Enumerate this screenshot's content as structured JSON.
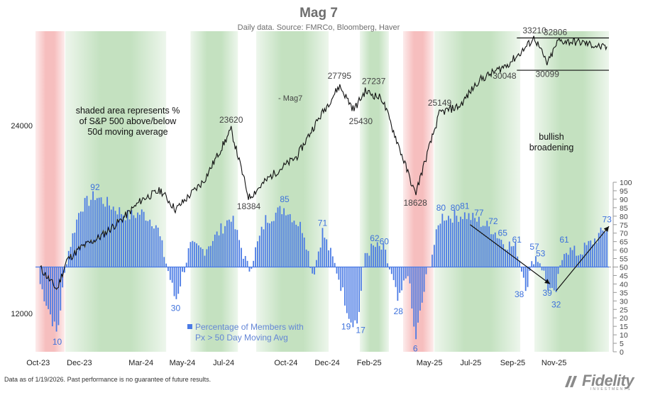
{
  "chart_data": {
    "type": "line+bar",
    "title": "Mag 7",
    "subtitle": "Daily data.  Source: FMRCo, Bloomberg, Haver",
    "x_tick_labels": [
      "Oct-23",
      "Dec-23",
      "Mar-24",
      "May-24",
      "Jul-24",
      "Oct-24",
      "Dec-24",
      "Feb-25",
      "May-25",
      "Jul-25",
      "Sep-25",
      "Nov-25"
    ],
    "left_axis": {
      "scale": "log",
      "tick_labels": [
        "12000",
        "24000"
      ]
    },
    "right_axis": {
      "range": [
        0,
        100
      ],
      "tick_labels": [
        "0",
        "5",
        "10",
        "15",
        "20",
        "25",
        "30",
        "35",
        "40",
        "45",
        "50",
        "55",
        "60",
        "65",
        "70",
        "75",
        "80",
        "85",
        "90",
        "95",
        "100"
      ]
    },
    "line_series": {
      "name": "Mag7",
      "points": [
        [
          "2023-10-02",
          14200
        ],
        [
          "2023-10-27",
          13100
        ],
        [
          "2023-11-10",
          14600
        ],
        [
          "2023-12-01",
          15300
        ],
        [
          "2023-12-29",
          15900
        ],
        [
          "2024-01-31",
          17000
        ],
        [
          "2024-03-01",
          18300
        ],
        [
          "2024-03-28",
          18900
        ],
        [
          "2024-04-19",
          17600
        ],
        [
          "2024-05-31",
          19600
        ],
        [
          "2024-07-10",
          23620
        ],
        [
          "2024-08-05",
          18384
        ],
        [
          "2024-09-06",
          19900
        ],
        [
          "2024-10-15",
          21400
        ],
        [
          "2024-11-08",
          23800
        ],
        [
          "2024-12-17",
          27795
        ],
        [
          "2025-01-07",
          25430
        ],
        [
          "2025-01-24",
          27237
        ],
        [
          "2025-02-18",
          26500
        ],
        [
          "2025-03-13",
          22500
        ],
        [
          "2025-04-08",
          18628
        ],
        [
          "2025-04-25",
          21500
        ],
        [
          "2025-05-14",
          25149
        ],
        [
          "2025-06-13",
          25800
        ],
        [
          "2025-07-10",
          28300
        ],
        [
          "2025-08-22",
          30048
        ],
        [
          "2025-09-12",
          31500
        ],
        [
          "2025-10-01",
          33210
        ],
        [
          "2025-10-20",
          30099
        ],
        [
          "2025-11-05",
          32806
        ],
        [
          "2025-12-10",
          32600
        ],
        [
          "2026-01-16",
          31900
        ]
      ]
    },
    "bar_series": {
      "name": "Percentage of Members with Px > 50 Day Moving Avg",
      "baseline": 50,
      "points": [
        [
          "2023-10-02",
          40
        ],
        [
          "2023-10-27",
          10
        ],
        [
          "2023-11-10",
          55
        ],
        [
          "2023-11-30",
          85
        ],
        [
          "2023-12-22",
          92
        ],
        [
          "2024-01-19",
          85
        ],
        [
          "2024-02-09",
          80
        ],
        [
          "2024-03-01",
          82
        ],
        [
          "2024-03-22",
          75
        ],
        [
          "2024-04-19",
          30
        ],
        [
          "2024-05-10",
          62
        ],
        [
          "2024-05-31",
          60
        ],
        [
          "2024-06-21",
          70
        ],
        [
          "2024-07-10",
          80
        ],
        [
          "2024-08-05",
          48
        ],
        [
          "2024-08-30",
          78
        ],
        [
          "2024-09-27",
          85
        ],
        [
          "2024-10-25",
          72
        ],
        [
          "2024-11-08",
          45
        ],
        [
          "2024-11-22",
          71
        ],
        [
          "2024-12-13",
          48
        ],
        [
          "2025-01-02",
          19
        ],
        [
          "2025-01-13",
          17
        ],
        [
          "2025-01-24",
          58
        ],
        [
          "2025-02-07",
          62
        ],
        [
          "2025-02-21",
          60
        ],
        [
          "2025-03-07",
          40
        ],
        [
          "2025-03-14",
          28
        ],
        [
          "2025-03-28",
          48
        ],
        [
          "2025-04-08",
          6
        ],
        [
          "2025-04-25",
          45
        ],
        [
          "2025-05-16",
          80
        ],
        [
          "2025-06-06",
          80
        ],
        [
          "2025-06-20",
          81
        ],
        [
          "2025-07-11",
          77
        ],
        [
          "2025-08-01",
          72
        ],
        [
          "2025-08-15",
          65
        ],
        [
          "2025-09-05",
          61
        ],
        [
          "2025-09-19",
          38
        ],
        [
          "2025-10-01",
          57
        ],
        [
          "2025-10-10",
          53
        ],
        [
          "2025-10-20",
          39
        ],
        [
          "2025-10-31",
          32
        ],
        [
          "2025-11-14",
          61
        ],
        [
          "2025-12-05",
          58
        ],
        [
          "2025-12-26",
          65
        ],
        [
          "2026-01-16",
          73
        ]
      ]
    },
    "annotations": [
      {
        "text": "92",
        "series": "bar",
        "x": "2023-12-22",
        "y": 92
      },
      {
        "text": "10",
        "series": "bar",
        "x": "2023-10-27",
        "y": 10
      },
      {
        "text": "30",
        "series": "bar",
        "x": "2024-04-19",
        "y": 30
      },
      {
        "text": "85",
        "series": "bar",
        "x": "2024-09-27",
        "y": 85
      },
      {
        "text": "71",
        "series": "bar",
        "x": "2024-11-22",
        "y": 71
      },
      {
        "text": "19",
        "series": "bar",
        "x": "2025-01-02",
        "y": 19
      },
      {
        "text": "17",
        "series": "bar",
        "x": "2025-01-13",
        "y": 17
      },
      {
        "text": "62",
        "series": "bar",
        "x": "2025-02-07",
        "y": 62
      },
      {
        "text": "60",
        "series": "bar",
        "x": "2025-02-21",
        "y": 60
      },
      {
        "text": "28",
        "series": "bar",
        "x": "2025-03-14",
        "y": 28
      },
      {
        "text": "6",
        "series": "bar",
        "x": "2025-04-08",
        "y": 6
      },
      {
        "text": "80",
        "series": "bar",
        "x": "2025-05-16",
        "y": 80
      },
      {
        "text": "80",
        "series": "bar",
        "x": "2025-06-06",
        "y": 80
      },
      {
        "text": "81",
        "series": "bar",
        "x": "2025-06-20",
        "y": 81
      },
      {
        "text": "77",
        "series": "bar",
        "x": "2025-07-11",
        "y": 77
      },
      {
        "text": "72",
        "series": "bar",
        "x": "2025-08-01",
        "y": 72
      },
      {
        "text": "65",
        "series": "bar",
        "x": "2025-08-15",
        "y": 65
      },
      {
        "text": "61",
        "series": "bar",
        "x": "2025-09-05",
        "y": 61
      },
      {
        "text": "38",
        "series": "bar",
        "x": "2025-09-19",
        "y": 38
      },
      {
        "text": "57",
        "series": "bar",
        "x": "2025-10-01",
        "y": 57
      },
      {
        "text": "53",
        "series": "bar",
        "x": "2025-10-10",
        "y": 53
      },
      {
        "text": "39",
        "series": "bar",
        "x": "2025-10-20",
        "y": 39
      },
      {
        "text": "32",
        "series": "bar",
        "x": "2025-10-31",
        "y": 32
      },
      {
        "text": "61",
        "series": "bar",
        "x": "2025-11-14",
        "y": 61
      },
      {
        "text": "73",
        "series": "bar",
        "x": "2026-01-16",
        "y": 73
      },
      {
        "text": "23620",
        "series": "line",
        "x": "2024-07-10",
        "y": 23620
      },
      {
        "text": "18384",
        "series": "line",
        "x": "2024-08-05",
        "y": 18384
      },
      {
        "text": "27795",
        "series": "line",
        "x": "2024-12-17",
        "y": 27795
      },
      {
        "text": "27237",
        "series": "line",
        "x": "2025-01-24",
        "y": 27237
      },
      {
        "text": "25430",
        "series": "line",
        "x": "2025-01-07",
        "y": 25430
      },
      {
        "text": "25149",
        "series": "line",
        "x": "2025-05-14",
        "y": 25149
      },
      {
        "text": "18628",
        "series": "line",
        "x": "2025-04-08",
        "y": 18628
      },
      {
        "text": "33210",
        "series": "line",
        "x": "2025-10-01",
        "y": 33210
      },
      {
        "text": "32806",
        "series": "line",
        "x": "2025-11-05",
        "y": 32806
      },
      {
        "text": "30048",
        "series": "line",
        "x": "2025-08-22",
        "y": 30048
      },
      {
        "text": "30099",
        "series": "line",
        "x": "2025-10-20",
        "y": 30099
      }
    ],
    "line_label": "- Mag7",
    "shading_note": "shaded area represents %\nof S&P 500 above/below\n50d moving average",
    "bullish_note": "bullish\nbroadening",
    "legend": "Percentage of Members with\nPx > 50 Day Moving Avg",
    "range_box": {
      "x_start": "2025-09-05",
      "x_end": "2026-01-19",
      "upper": 32806,
      "lower": 30048
    },
    "trend_arrows": [
      {
        "from": [
          "2025-06-28",
          75
        ],
        "to": [
          "2025-10-24",
          40
        ]
      },
      {
        "from": [
          "2025-11-02",
          36
        ],
        "to": [
          "2026-01-19",
          74
        ]
      }
    ],
    "colors": {
      "bar": "#4b7be5",
      "line": "#111111",
      "green_shade": "#b9dcb5",
      "red_shade": "#f5b3b3",
      "label_blue": "#3d71dc"
    },
    "background_shading": [
      [
        "2023-09-25",
        "2023-11-07",
        "red"
      ],
      [
        "2023-11-08",
        "2024-04-05",
        "green"
      ],
      [
        "2024-04-06",
        "2024-05-10",
        "white"
      ],
      [
        "2024-05-11",
        "2024-07-20",
        "green"
      ],
      [
        "2024-07-21",
        "2024-08-15",
        "white"
      ],
      [
        "2024-08-16",
        "2024-12-01",
        "green"
      ],
      [
        "2024-12-02",
        "2025-01-15",
        "white"
      ],
      [
        "2025-01-16",
        "2025-02-28",
        "green"
      ],
      [
        "2025-03-01",
        "2025-03-20",
        "white"
      ],
      [
        "2025-03-21",
        "2025-05-05",
        "red"
      ],
      [
        "2025-05-06",
        "2025-09-10",
        "green"
      ],
      [
        "2025-09-11",
        "2025-09-30",
        "white"
      ],
      [
        "2025-10-01",
        "2026-01-19",
        "green"
      ]
    ]
  },
  "footer": "Data as of 1/19/2026. Past performance is no guarantee of future results.",
  "brand": "Fidelity",
  "brand_sub": "INVESTMENTS"
}
